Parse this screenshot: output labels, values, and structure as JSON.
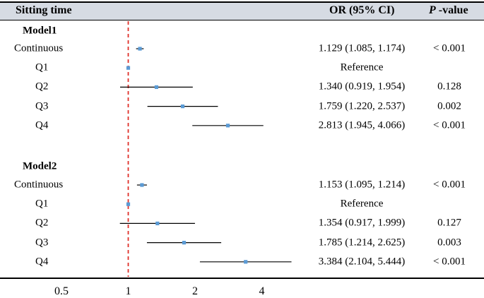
{
  "header": {
    "col_exposure": "Sitting time",
    "col_or": "OR (95% CI)",
    "col_p_italic": "P",
    "col_p_rest": " -value"
  },
  "colors": {
    "header_bg": "#d6dbe3",
    "point": "#5b9bd5",
    "reference_line": "#e0302a",
    "ci_line": "#000000"
  },
  "chart_data": {
    "type": "forest",
    "x_scale": "log",
    "reference_value": 1,
    "x_ticks": [
      0.5,
      1,
      2,
      4
    ],
    "x_tick_labels": [
      "0.5",
      "1",
      "2",
      "4"
    ],
    "models": [
      {
        "name": "Model1",
        "rows": [
          {
            "label": "Continuous",
            "or": 1.129,
            "lower": 1.085,
            "upper": 1.174,
            "ci_text": "1.129 (1.085, 1.174)",
            "p_text": "< 0.001"
          },
          {
            "label": "Q1",
            "or": 1.0,
            "lower": null,
            "upper": null,
            "ci_text": "Reference",
            "p_text": ""
          },
          {
            "label": "Q2",
            "or": 1.34,
            "lower": 0.919,
            "upper": 1.954,
            "ci_text": "1.340 (0.919, 1.954)",
            "p_text": "0.128"
          },
          {
            "label": "Q3",
            "or": 1.759,
            "lower": 1.22,
            "upper": 2.537,
            "ci_text": "1.759 (1.220, 2.537)",
            "p_text": "0.002"
          },
          {
            "label": "Q4",
            "or": 2.813,
            "lower": 1.945,
            "upper": 4.066,
            "ci_text": "2.813 (1.945, 4.066)",
            "p_text": "< 0.001"
          }
        ]
      },
      {
        "name": "Model2",
        "rows": [
          {
            "label": "Continuous",
            "or": 1.153,
            "lower": 1.095,
            "upper": 1.214,
            "ci_text": "1.153 (1.095, 1.214)",
            "p_text": "< 0.001"
          },
          {
            "label": "Q1",
            "or": 1.0,
            "lower": null,
            "upper": null,
            "ci_text": "Reference",
            "p_text": ""
          },
          {
            "label": "Q2",
            "or": 1.354,
            "lower": 0.917,
            "upper": 1.999,
            "ci_text": "1.354 (0.917, 1.999)",
            "p_text": "0.127"
          },
          {
            "label": "Q3",
            "or": 1.785,
            "lower": 1.214,
            "upper": 2.625,
            "ci_text": "1.785 (1.214, 2.625)",
            "p_text": "0.003"
          },
          {
            "label": "Q4",
            "or": 3.384,
            "lower": 2.104,
            "upper": 5.444,
            "ci_text": "3.384 (2.104, 5.444)",
            "p_text": "< 0.001"
          }
        ]
      }
    ]
  }
}
